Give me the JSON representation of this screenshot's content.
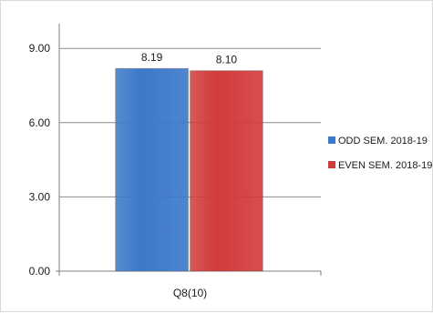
{
  "chart_data": {
    "type": "bar",
    "categories": [
      "Q8(10)"
    ],
    "series": [
      {
        "name": "ODD SEM. 2018-19",
        "values": [
          8.19
        ],
        "color": "#3b78c9"
      },
      {
        "name": "EVEN SEM. 2018-19",
        "values": [
          8.1
        ],
        "color": "#d23b3b"
      }
    ],
    "data_labels": [
      "8.19",
      "8.10"
    ],
    "y_ticks": [
      "0.00",
      "3.00",
      "6.00",
      "9.00"
    ],
    "ylim": [
      0,
      10
    ],
    "grid": true,
    "legend_position": "right",
    "title": "",
    "xlabel": "",
    "ylabel": ""
  }
}
